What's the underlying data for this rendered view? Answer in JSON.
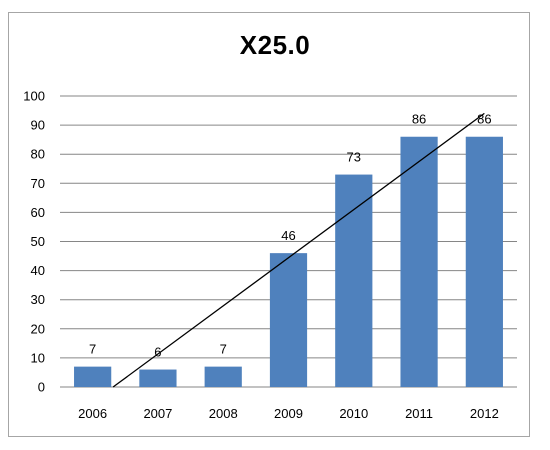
{
  "chart_data": {
    "type": "bar",
    "title": "X25.0",
    "categories": [
      "2006",
      "2007",
      "2008",
      "2009",
      "2010",
      "2011",
      "2012"
    ],
    "values": [
      7,
      6,
      7,
      46,
      73,
      86,
      86
    ],
    "series": [
      {
        "values": [
          7,
          6,
          7,
          46,
          73,
          86,
          86
        ]
      }
    ],
    "data_labels": [
      "7",
      "6",
      "7",
      "46",
      "73",
      "86",
      "86"
    ],
    "trendline": {
      "type": "linear",
      "color": "#000000"
    },
    "ylim": [
      0,
      100
    ],
    "yticks": [
      0,
      10,
      20,
      30,
      40,
      50,
      60,
      70,
      80,
      90,
      100
    ],
    "xlabel": "",
    "ylabel": "",
    "grid": true,
    "legend": "none",
    "bar_color": "#4f81bd",
    "grid_color": "#868686"
  }
}
